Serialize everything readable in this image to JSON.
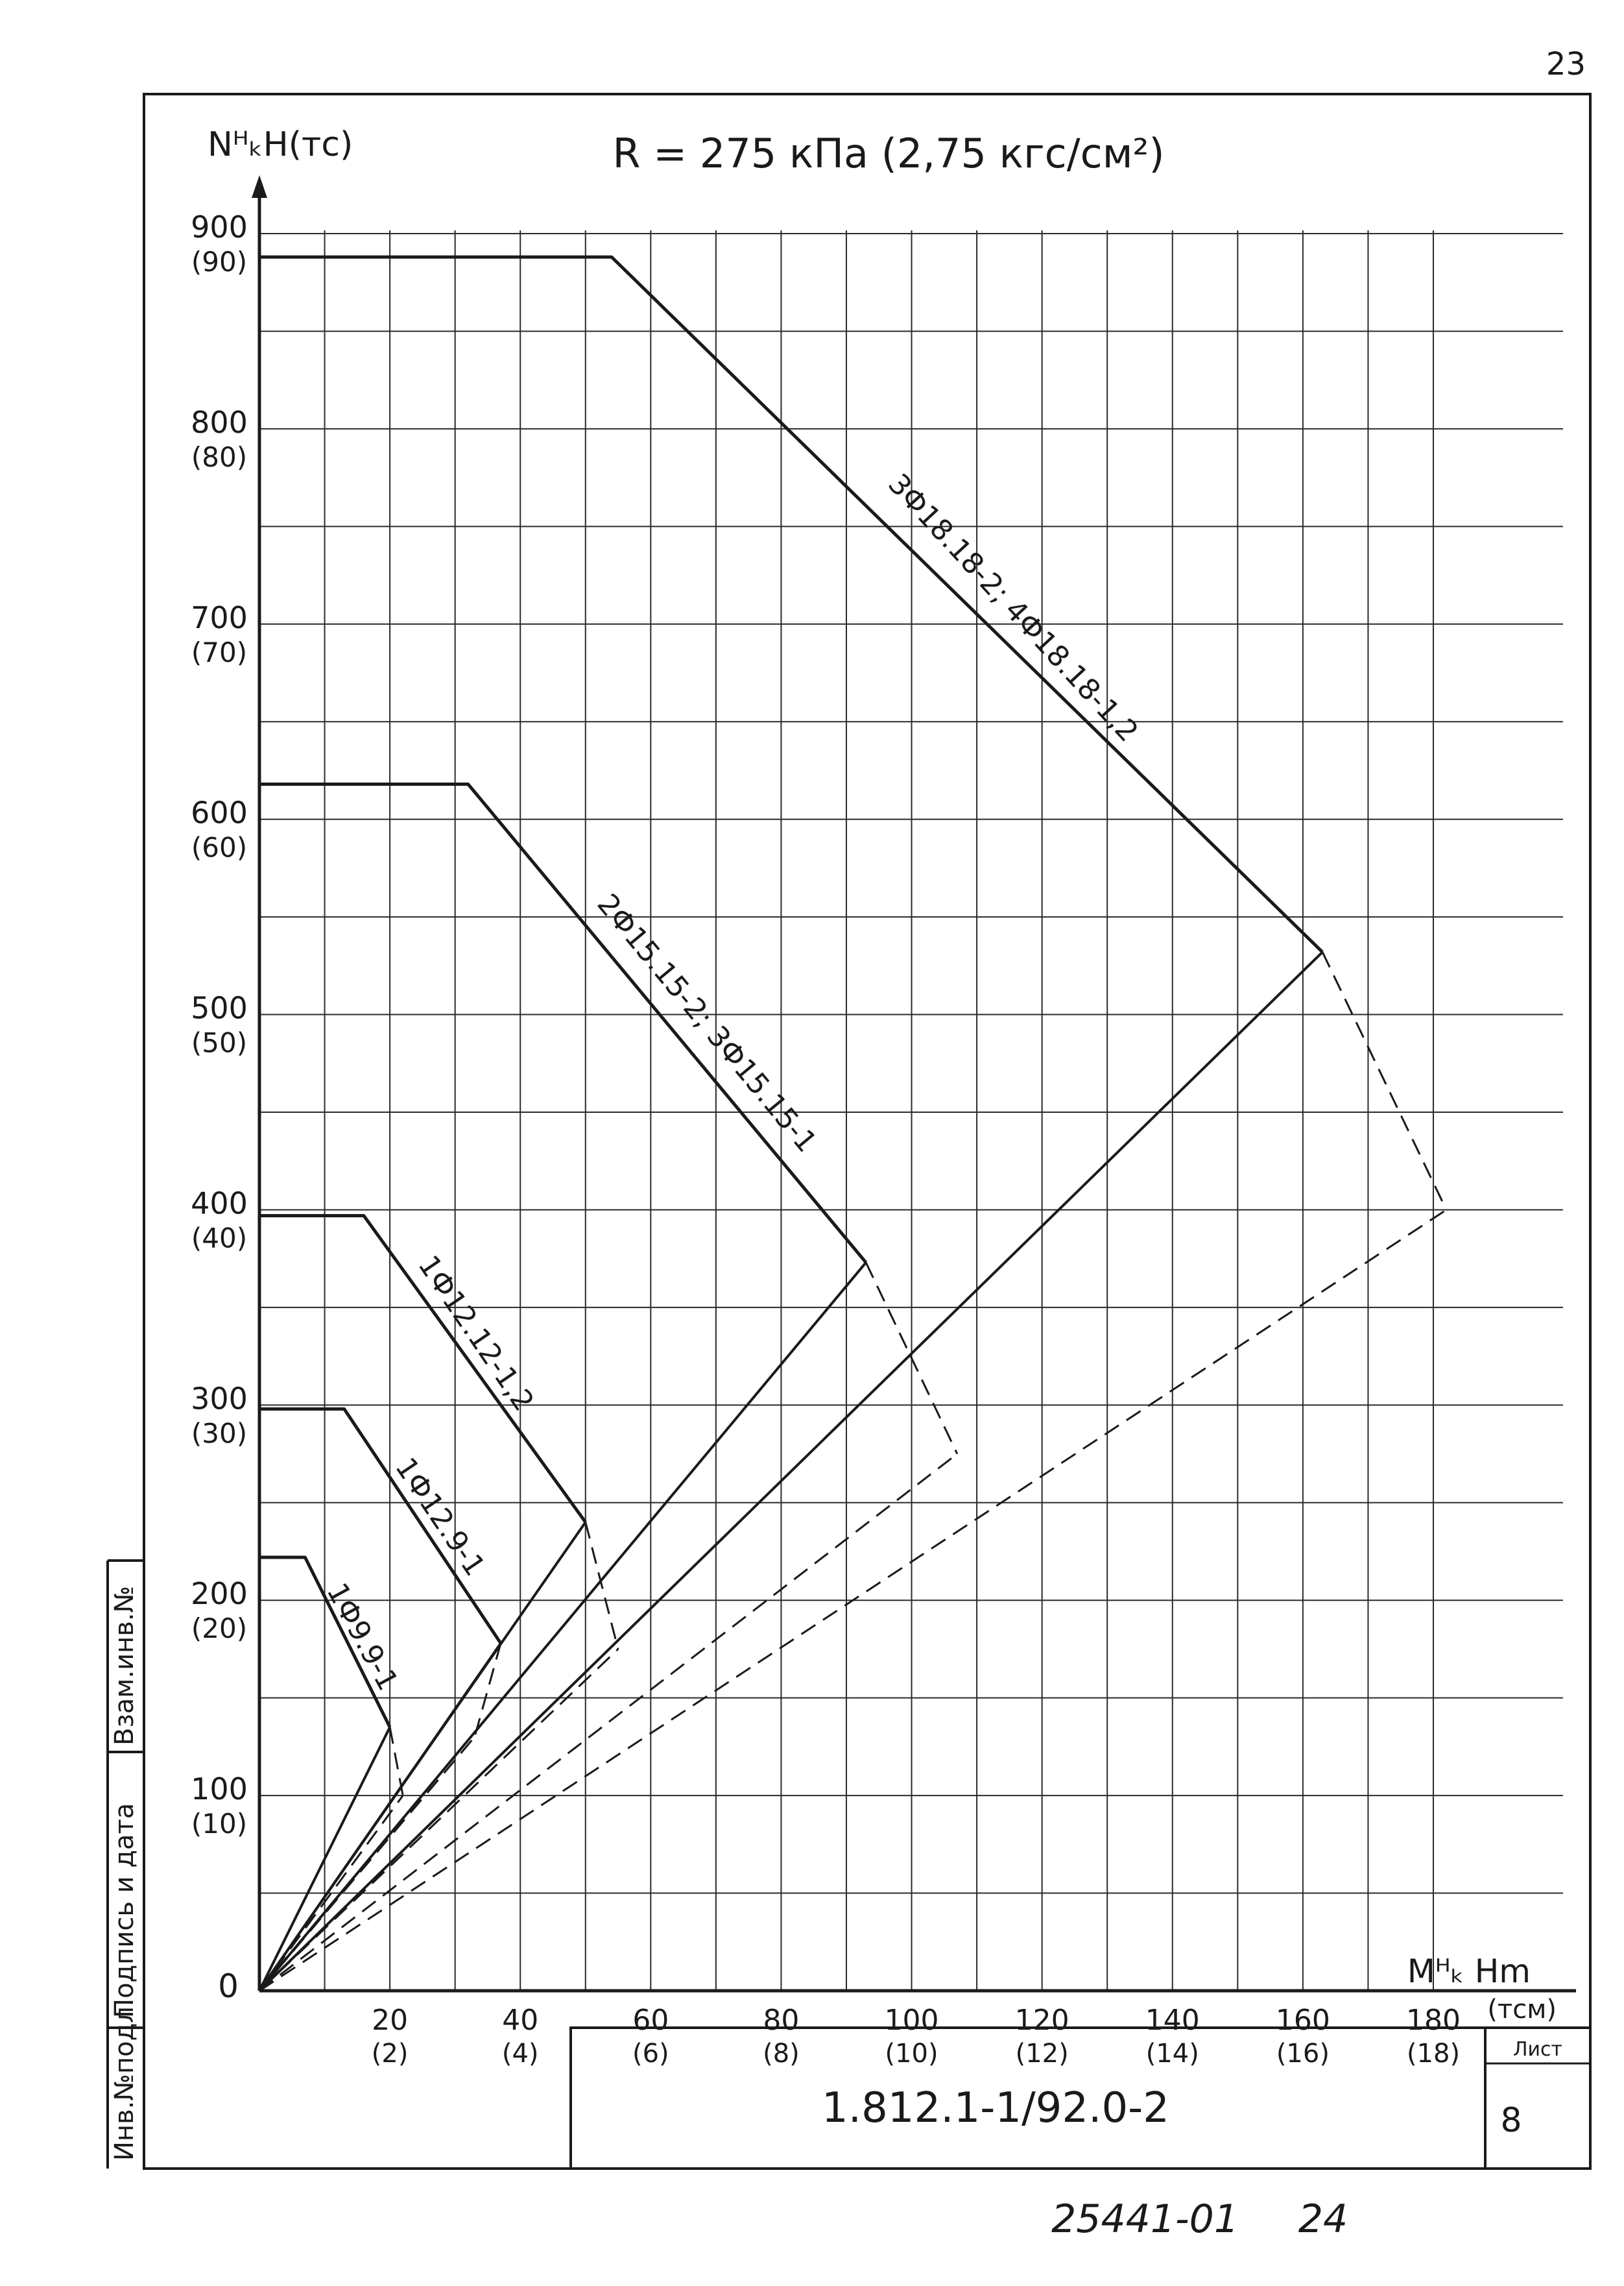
{
  "page": {
    "page_number": "23",
    "stamp_code": "1.812.1-1/92.0-2",
    "sheet_label": "Лист",
    "sheet_number": "8",
    "archive_number": "25441-01",
    "archive_page": "24",
    "side_stamp": [
      "Инв.№подл.",
      "Подпись и дата",
      "Взам.инв.№"
    ]
  },
  "chart_data": {
    "type": "line",
    "title": "R = 275 кПа (2,75 кгс/см²)",
    "ylabel": "NᴴₖН(тс)",
    "xlabel": "Mᴴₖ Нm",
    "x_unit_secondary": "(тсм)",
    "xlim": [
      0,
      180
    ],
    "ylim": [
      0,
      900
    ],
    "grid": true,
    "origin_label": "0",
    "x_ticks": [
      {
        "value": 20,
        "label": "20",
        "sub": "(2)"
      },
      {
        "value": 40,
        "label": "40",
        "sub": "(4)"
      },
      {
        "value": 60,
        "label": "60",
        "sub": "(6)"
      },
      {
        "value": 80,
        "label": "80",
        "sub": "(8)"
      },
      {
        "value": 100,
        "label": "100",
        "sub": "(10)"
      },
      {
        "value": 120,
        "label": "120",
        "sub": "(12)"
      },
      {
        "value": 140,
        "label": "140",
        "sub": "(14)"
      },
      {
        "value": 160,
        "label": "160",
        "sub": "(16)"
      },
      {
        "value": 180,
        "label": "180",
        "sub": "(18)"
      }
    ],
    "y_ticks": [
      {
        "value": 100,
        "label": "100",
        "sub": "(10)"
      },
      {
        "value": 200,
        "label": "200",
        "sub": "(20)"
      },
      {
        "value": 300,
        "label": "300",
        "sub": "(30)"
      },
      {
        "value": 400,
        "label": "400",
        "sub": "(40)"
      },
      {
        "value": 500,
        "label": "500",
        "sub": "(50)"
      },
      {
        "value": 600,
        "label": "600",
        "sub": "(60)"
      },
      {
        "value": 700,
        "label": "700",
        "sub": "(70)"
      },
      {
        "value": 800,
        "label": "800",
        "sub": "(80)"
      },
      {
        "value": 900,
        "label": "900",
        "sub": "(90)"
      }
    ],
    "series": [
      {
        "name": "1Ф9.9-1",
        "envelope": [
          [
            0,
            222
          ],
          [
            7,
            222
          ],
          [
            20,
            135
          ],
          [
            22,
            100
          ]
        ],
        "rays": [
          [
            [
              0,
              0
            ],
            [
              20,
              135
            ]
          ],
          [
            [
              0,
              0
            ],
            [
              22,
              100
            ]
          ]
        ],
        "label_at": [
          [
            9,
            213
          ],
          [
            20,
            145
          ]
        ]
      },
      {
        "name": "1Ф12.9-1",
        "envelope": [
          [
            0,
            298
          ],
          [
            13,
            298
          ],
          [
            37,
            178
          ],
          [
            33,
            130
          ]
        ],
        "rays": [
          [
            [
              0,
              0
            ],
            [
              37,
              178
            ]
          ],
          [
            [
              0,
              0
            ],
            [
              33,
              130
            ]
          ]
        ],
        "label_at": [
          [
            18,
            282
          ],
          [
            35,
            198
          ]
        ]
      },
      {
        "name": "1Ф12.12-1,2",
        "envelope": [
          [
            0,
            397
          ],
          [
            16,
            397
          ],
          [
            50,
            240
          ],
          [
            55,
            175
          ]
        ],
        "rays": [
          [
            [
              0,
              0
            ],
            [
              50,
              240
            ]
          ],
          [
            [
              0,
              0
            ],
            [
              55,
              175
            ]
          ]
        ],
        "label_at": [
          [
            22,
            383
          ],
          [
            42,
            285
          ]
        ]
      },
      {
        "name": "2Ф15.15-2; 3Ф15.15-1",
        "envelope": [
          [
            0,
            618
          ],
          [
            32,
            618
          ],
          [
            93,
            373
          ],
          [
            107,
            275
          ]
        ],
        "rays": [
          [
            [
              0,
              0
            ],
            [
              93,
              373
            ]
          ],
          [
            [
              0,
              0
            ],
            [
              107,
              275
            ]
          ]
        ],
        "label_at": [
          [
            47,
            575
          ],
          [
            88,
            410
          ]
        ]
      },
      {
        "name": "3Ф18.18-2; 4Ф18.18-1,2",
        "envelope": [
          [
            0,
            888
          ],
          [
            54,
            888
          ],
          [
            163,
            532
          ],
          [
            182,
            400
          ]
        ],
        "rays": [
          [
            [
              0,
              0
            ],
            [
              163,
              532
            ]
          ],
          [
            [
              0,
              0
            ],
            [
              182,
              400
            ]
          ]
        ],
        "label_at": [
          [
            91,
            790
          ],
          [
            138,
            620
          ]
        ]
      }
    ]
  },
  "colors": {
    "ink": "#1a1a1a",
    "grid": "#2a2a2a",
    "paper": "#ffffff"
  }
}
